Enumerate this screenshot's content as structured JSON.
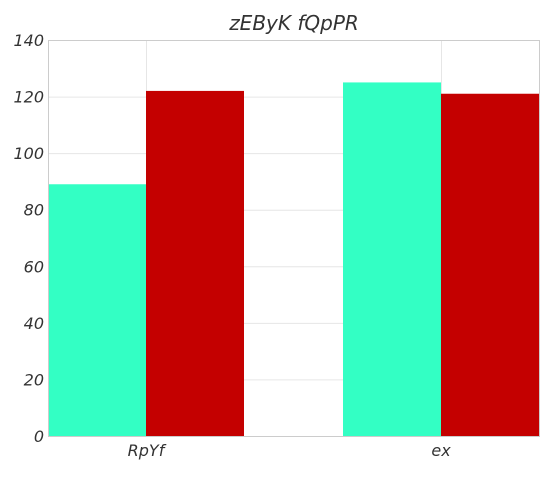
{
  "chart_data": {
    "type": "bar",
    "title": "zEByK fQpPR",
    "xlabel": "",
    "ylabel": "",
    "categories": [
      "RpYf",
      "ex"
    ],
    "series": [
      {
        "values": [
          89,
          125
        ],
        "color": "#33ffc4"
      },
      {
        "values": [
          122,
          121
        ],
        "color": "#c40000"
      }
    ],
    "ylim": [
      0,
      140
    ],
    "yticks": [
      0,
      20,
      40,
      60,
      80,
      100,
      120,
      140
    ],
    "grid": true,
    "legend": "none"
  }
}
